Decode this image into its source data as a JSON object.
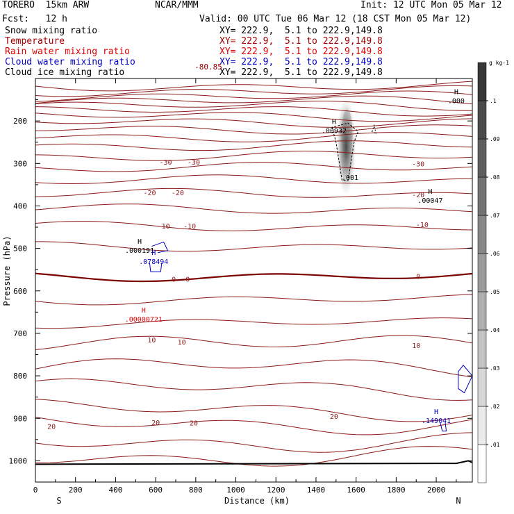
{
  "header": {
    "model": "TORERO  15km ARW",
    "org": "NCAR/MMM",
    "init": "Init: 12 UTC Mon 05 Mar 12",
    "fcst": "Fcst:   12 h",
    "valid": "Valid: 00 UTC Tue 06 Mar 12 (18 CST Mon 05 Mar 12)"
  },
  "legend": [
    {
      "name": "Snow mixing ratio",
      "xy": "XY= 222.9,  5.1 to 222.9,149.8",
      "color": "#000000"
    },
    {
      "name": "Temperature",
      "xy": "XY= 222.9,  5.1 to 222.9,149.8",
      "color": "#a00000"
    },
    {
      "name": "Rain water mixing ratio",
      "xy": "XY= 222.9,  5.1 to 222.9,149.8",
      "color": "#e00000"
    },
    {
      "name": "Cloud water mixing ratio",
      "xy": "XY= 222.9,  5.1 to 222.9,149.8",
      "color": "#0000c0"
    },
    {
      "name": "Cloud ice mixing ratio",
      "xy": "XY= 222.9,  5.1 to 222.9,149.8",
      "color": "#000000"
    }
  ],
  "chart_data": {
    "type": "cross-section contour",
    "xlabel": "Distance (km)",
    "ylabel": "Pressure (hPa)",
    "x_ticks": [
      0,
      200,
      400,
      600,
      800,
      1000,
      1200,
      1400,
      1600,
      1800,
      2000
    ],
    "y_ticks": [
      200,
      300,
      400,
      500,
      600,
      700,
      800,
      900,
      1000
    ],
    "xlim": [
      0,
      2180
    ],
    "ylim": [
      1050,
      100
    ],
    "left_end": "S",
    "right_end": "N",
    "colorbar": {
      "unit": "g kg-1",
      "labels": [
        ".01",
        ".02",
        ".03",
        ".04",
        ".05",
        ".06",
        ".07",
        ".08",
        ".09",
        ".1"
      ]
    },
    "temperature_labels": [
      {
        "text": "-30",
        "x": 650,
        "p": 296
      },
      {
        "text": "-30",
        "x": 790,
        "p": 296
      },
      {
        "text": "-30",
        "x": 1910,
        "p": 300
      },
      {
        "text": "-20",
        "x": 570,
        "p": 368
      },
      {
        "text": "-20",
        "x": 710,
        "p": 368
      },
      {
        "text": "-20",
        "x": 1910,
        "p": 373
      },
      {
        "text": "-10",
        "x": 640,
        "p": 447
      },
      {
        "text": "-10",
        "x": 770,
        "p": 447
      },
      {
        "text": "-10",
        "x": 1930,
        "p": 443
      },
      {
        "text": "0",
        "x": 690,
        "p": 572
      },
      {
        "text": "0",
        "x": 760,
        "p": 572
      },
      {
        "text": "0",
        "x": 1910,
        "p": 565
      },
      {
        "text": "10",
        "x": 580,
        "p": 715
      },
      {
        "text": "10",
        "x": 730,
        "p": 720
      },
      {
        "text": "10",
        "x": 1900,
        "p": 728
      },
      {
        "text": "20",
        "x": 80,
        "p": 918
      },
      {
        "text": "20",
        "x": 600,
        "p": 909
      },
      {
        "text": "20",
        "x": 790,
        "p": 910
      },
      {
        "text": "20",
        "x": 1490,
        "p": 895
      }
    ],
    "extrema": [
      {
        "label": "H",
        "value": ".000",
        "x": 2100,
        "p": 142,
        "series": "Snow mixing ratio"
      },
      {
        "label": "H",
        "value": ".00932",
        "x": 1490,
        "p": 212,
        "series": "Cloud ice mixing ratio"
      },
      {
        "label": "",
        "value": ".001",
        "x": 1570,
        "p": 322,
        "series": "Cloud ice mixing ratio"
      },
      {
        "label": "H",
        "value": ".00047",
        "x": 1970,
        "p": 376,
        "series": "Snow mixing ratio"
      },
      {
        "label": "H",
        "value": ".000191",
        "x": 520,
        "p": 494,
        "series": "Snow mixing ratio"
      },
      {
        "label": "H",
        "value": ".078494",
        "x": 590,
        "p": 520,
        "series": "Cloud water mixing ratio"
      },
      {
        "label": "H",
        "value": ".00000721",
        "x": 540,
        "p": 656,
        "series": "Rain water mixing ratio"
      },
      {
        "label": "H",
        "value": ".149041",
        "x": 2000,
        "p": 895,
        "series": "Cloud water mixing ratio"
      }
    ],
    "top_labels": [
      "-80.85"
    ]
  }
}
